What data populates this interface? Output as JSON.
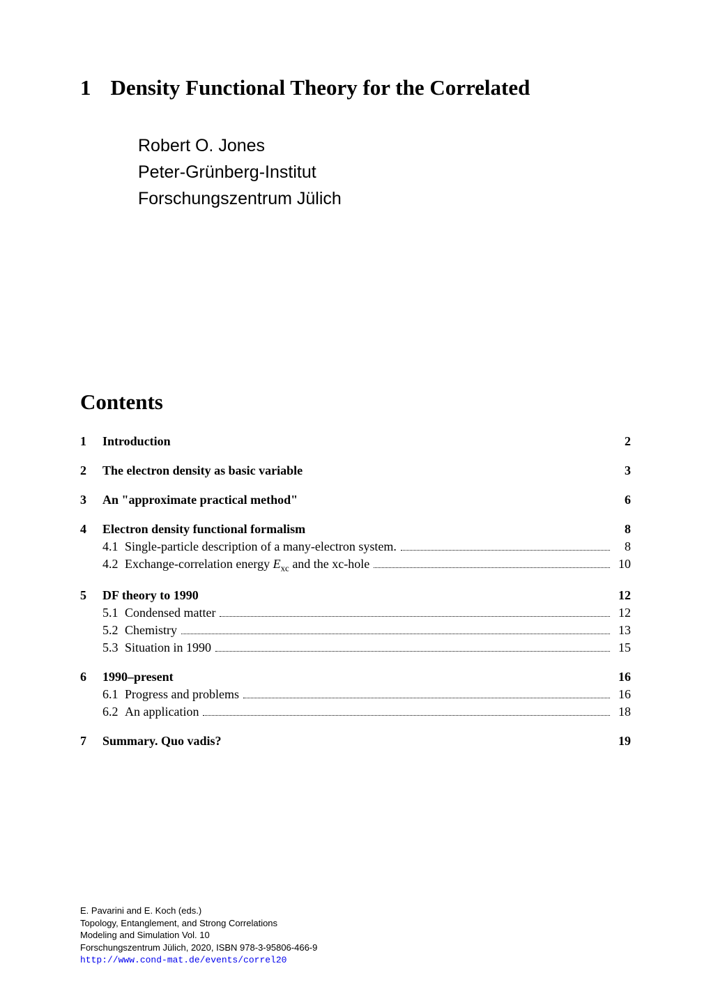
{
  "chapter": {
    "number": "1",
    "title": "Density Functional Theory for the Correlated"
  },
  "author": {
    "name": "Robert O. Jones",
    "affiliation1": "Peter-Grünberg-Institut",
    "affiliation2": "Forschungszentrum Jülich"
  },
  "contents_heading": "Contents",
  "toc": [
    {
      "type": "section",
      "num": "1",
      "label": "Introduction",
      "page": "2"
    },
    {
      "type": "section",
      "num": "2",
      "label": "The electron density as basic variable",
      "page": "3"
    },
    {
      "type": "section",
      "num": "3",
      "label": "An \"approximate practical method\"",
      "page": "6"
    },
    {
      "type": "section",
      "num": "4",
      "label": "Electron density functional formalism",
      "page": "8"
    },
    {
      "type": "subsection",
      "num": "4.1",
      "label": "Single-particle description of a many-electron system.",
      "page": "8"
    },
    {
      "type": "subsection",
      "num": "4.2",
      "label_pre": "Exchange-correlation energy ",
      "math_var": "E",
      "math_sub": "xc",
      "label_post": " and the xc-hole",
      "page": "10"
    },
    {
      "type": "section",
      "num": "5",
      "label": "DF theory to 1990",
      "page": "12"
    },
    {
      "type": "subsection",
      "num": "5.1",
      "label": "Condensed matter",
      "page": "12"
    },
    {
      "type": "subsection",
      "num": "5.2",
      "label": "Chemistry",
      "page": "13"
    },
    {
      "type": "subsection",
      "num": "5.3",
      "label": "Situation in 1990",
      "page": "15"
    },
    {
      "type": "section",
      "num": "6",
      "label": "1990–present",
      "page": "16"
    },
    {
      "type": "subsection",
      "num": "6.1",
      "label": "Progress and problems",
      "page": "16"
    },
    {
      "type": "subsection",
      "num": "6.2",
      "label": "An application",
      "page": "18"
    },
    {
      "type": "section",
      "num": "7",
      "label": "Summary. Quo vadis?",
      "page": "19"
    }
  ],
  "footer": {
    "line1": "E. Pavarini and E. Koch (eds.)",
    "line2": "Topology, Entanglement, and Strong Correlations",
    "line3": "Modeling and Simulation Vol. 10",
    "line4": "Forschungszentrum Jülich, 2020, ISBN 978-3-95806-466-9",
    "link": "http://www.cond-mat.de/events/correl20"
  }
}
